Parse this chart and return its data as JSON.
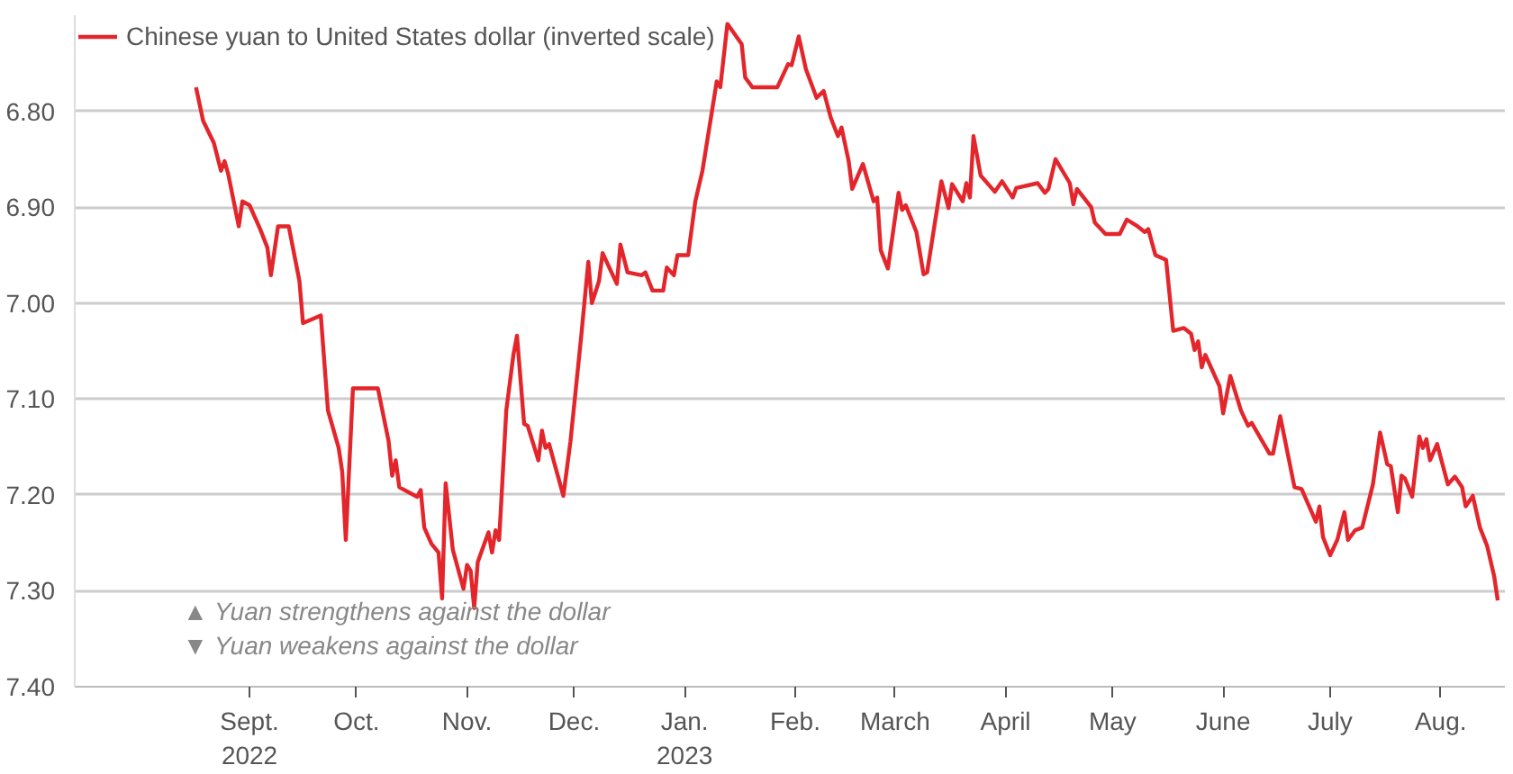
{
  "chart_data": {
    "type": "line",
    "legend": "top left",
    "grid": "y",
    "line_style": "solid",
    "xlim": [
      "2022-07-14",
      "2023-08-19"
    ],
    "xticks": [
      {
        "value": "2022-09-01",
        "label": "Sept.\n2022"
      },
      {
        "value": "2022-10-01",
        "label": "Oct."
      },
      {
        "value": "2022-11-01",
        "label": "Nov."
      },
      {
        "value": "2022-12-01",
        "label": "Dec."
      },
      {
        "value": "2023-01-01",
        "label": "Jan.\n2023"
      },
      {
        "value": "2023-02-01",
        "label": "Feb."
      },
      {
        "value": "2023-03-01",
        "label": "March"
      },
      {
        "value": "2023-04-01",
        "label": "April"
      },
      {
        "value": "2023-05-01",
        "label": "May"
      },
      {
        "value": "2023-06-01",
        "label": "June"
      },
      {
        "value": "2023-07-01",
        "label": "July"
      },
      {
        "value": "2023-08-01",
        "label": "Aug."
      }
    ],
    "ylim": [
      7.4,
      6.7
    ],
    "yticks": [
      {
        "value": 6.8,
        "label": "6.80"
      },
      {
        "value": 6.9,
        "label": "6.90"
      },
      {
        "value": 7.0,
        "label": "7.00"
      },
      {
        "value": 7.1,
        "label": "7.10"
      },
      {
        "value": 7.2,
        "label": "7.20"
      },
      {
        "value": 7.3,
        "label": "7.30"
      },
      {
        "value": 7.4,
        "label": "7.40"
      }
    ],
    "annotations": [
      "▲ Yuan strengthens against the dollar",
      "▼ Yuan weakens against the dollar"
    ],
    "x": [
      "2022-08-17",
      "2022-08-19",
      "2022-08-22",
      "2022-08-24",
      "2022-08-25",
      "2022-08-26",
      "2022-08-29",
      "2022-08-30",
      "2022-09-01",
      "2022-09-04",
      "2022-09-06",
      "2022-09-07",
      "2022-09-09",
      "2022-09-12",
      "2022-09-13",
      "2022-09-15",
      "2022-09-16",
      "2022-09-21",
      "2022-09-23",
      "2022-09-26",
      "2022-09-27",
      "2022-09-28",
      "2022-09-30",
      "2022-10-07",
      "2022-10-10",
      "2022-10-11",
      "2022-10-12",
      "2022-10-13",
      "2022-10-18",
      "2022-10-19",
      "2022-10-20",
      "2022-10-22",
      "2022-10-24",
      "2022-10-25",
      "2022-10-26",
      "2022-10-28",
      "2022-10-31",
      "2022-11-01",
      "2022-11-02",
      "2022-11-03",
      "2022-11-04",
      "2022-11-07",
      "2022-11-08",
      "2022-11-09",
      "2022-11-10",
      "2022-11-12",
      "2022-11-14",
      "2022-11-15",
      "2022-11-17",
      "2022-11-18",
      "2022-11-21",
      "2022-11-22",
      "2022-11-23",
      "2022-11-24",
      "2022-11-28",
      "2022-11-30",
      "2022-12-03",
      "2022-12-05",
      "2022-12-06",
      "2022-12-08",
      "2022-12-09",
      "2022-12-13",
      "2022-12-14",
      "2022-12-16",
      "2022-12-20",
      "2022-12-21",
      "2022-12-23",
      "2022-12-26",
      "2022-12-27",
      "2022-12-29",
      "2022-12-30",
      "2023-01-02",
      "2023-01-04",
      "2023-01-06",
      "2023-01-10",
      "2023-01-11",
      "2023-01-13",
      "2023-01-17",
      "2023-01-18",
      "2023-01-20",
      "2023-01-27",
      "2023-01-30",
      "2023-01-31",
      "2023-02-02",
      "2023-02-04",
      "2023-02-07",
      "2023-02-09",
      "2023-02-11",
      "2023-02-13",
      "2023-02-14",
      "2023-02-16",
      "2023-02-17",
      "2023-02-20",
      "2023-02-23",
      "2023-02-24",
      "2023-02-25",
      "2023-02-27",
      "2023-03-02",
      "2023-03-03",
      "2023-03-04",
      "2023-03-07",
      "2023-03-09",
      "2023-03-10",
      "2023-03-14",
      "2023-03-16",
      "2023-03-17",
      "2023-03-20",
      "2023-03-21",
      "2023-03-22",
      "2023-03-23",
      "2023-03-25",
      "2023-03-29",
      "2023-03-31",
      "2023-04-03",
      "2023-04-04",
      "2023-04-10",
      "2023-04-12",
      "2023-04-13",
      "2023-04-15",
      "2023-04-19",
      "2023-04-20",
      "2023-04-21",
      "2023-04-25",
      "2023-04-26",
      "2023-04-29",
      "2023-05-03",
      "2023-05-05",
      "2023-05-08",
      "2023-05-10",
      "2023-05-11",
      "2023-05-13",
      "2023-05-16",
      "2023-05-18",
      "2023-05-21",
      "2023-05-23",
      "2023-05-24",
      "2023-05-25",
      "2023-05-26",
      "2023-05-27",
      "2023-05-31",
      "2023-06-01",
      "2023-06-03",
      "2023-06-06",
      "2023-06-08",
      "2023-06-09",
      "2023-06-14",
      "2023-06-15",
      "2023-06-17",
      "2023-06-21",
      "2023-06-23",
      "2023-06-27",
      "2023-06-28",
      "2023-06-29",
      "2023-07-01",
      "2023-07-03",
      "2023-07-05",
      "2023-07-06",
      "2023-07-08",
      "2023-07-10",
      "2023-07-13",
      "2023-07-15",
      "2023-07-17",
      "2023-07-18",
      "2023-07-20",
      "2023-07-21",
      "2023-07-22",
      "2023-07-24",
      "2023-07-26",
      "2023-07-27",
      "2023-07-28",
      "2023-07-29",
      "2023-07-31",
      "2023-08-03",
      "2023-08-05",
      "2023-08-07",
      "2023-08-08",
      "2023-08-10",
      "2023-08-12",
      "2023-08-14",
      "2023-08-16",
      "2023-08-17"
    ],
    "series": [
      {
        "name": "Chinese yuan to United States dollar (inverted scale)",
        "color": "#e3262b",
        "values": [
          6.775,
          6.81,
          6.833,
          6.862,
          6.852,
          6.865,
          6.92,
          6.894,
          6.898,
          6.923,
          6.942,
          6.971,
          6.92,
          6.92,
          6.939,
          6.977,
          7.021,
          7.013,
          7.112,
          7.151,
          7.176,
          7.247,
          7.089,
          7.089,
          7.144,
          7.18,
          7.164,
          7.192,
          7.202,
          7.195,
          7.234,
          7.251,
          7.26,
          7.308,
          7.188,
          7.257,
          7.298,
          7.273,
          7.279,
          7.318,
          7.27,
          7.239,
          7.26,
          7.237,
          7.247,
          7.112,
          7.054,
          7.034,
          7.126,
          7.128,
          7.164,
          7.133,
          7.151,
          7.147,
          7.201,
          7.144,
          7.035,
          6.957,
          7.0,
          6.977,
          6.948,
          6.98,
          6.939,
          6.968,
          6.971,
          6.968,
          6.987,
          6.987,
          6.963,
          6.971,
          6.95,
          6.95,
          6.894,
          6.862,
          6.769,
          6.775,
          6.709,
          6.73,
          6.765,
          6.775,
          6.775,
          6.751,
          6.752,
          6.722,
          6.756,
          6.786,
          6.779,
          6.807,
          6.826,
          6.817,
          6.852,
          6.881,
          6.855,
          6.894,
          6.89,
          6.945,
          6.964,
          6.885,
          6.903,
          6.898,
          6.926,
          6.97,
          6.968,
          6.873,
          6.901,
          6.876,
          6.894,
          6.875,
          6.89,
          6.826,
          6.867,
          6.884,
          6.873,
          6.89,
          6.88,
          6.875,
          6.885,
          6.881,
          6.85,
          6.875,
          6.897,
          6.881,
          6.9,
          6.916,
          6.928,
          6.928,
          6.913,
          6.92,
          6.926,
          6.923,
          6.95,
          6.955,
          7.029,
          7.026,
          7.032,
          7.049,
          7.04,
          7.067,
          7.054,
          7.087,
          7.115,
          7.076,
          7.112,
          7.128,
          7.125,
          7.157,
          7.157,
          7.118,
          7.192,
          7.194,
          7.228,
          7.212,
          7.244,
          7.263,
          7.247,
          7.218,
          7.247,
          7.237,
          7.234,
          7.189,
          7.135,
          7.168,
          7.17,
          7.218,
          7.18,
          7.183,
          7.202,
          7.139,
          7.151,
          7.142,
          7.164,
          7.147,
          7.189,
          7.181,
          7.192,
          7.212,
          7.201,
          7.234,
          7.253,
          7.285,
          7.31
        ]
      }
    ]
  }
}
